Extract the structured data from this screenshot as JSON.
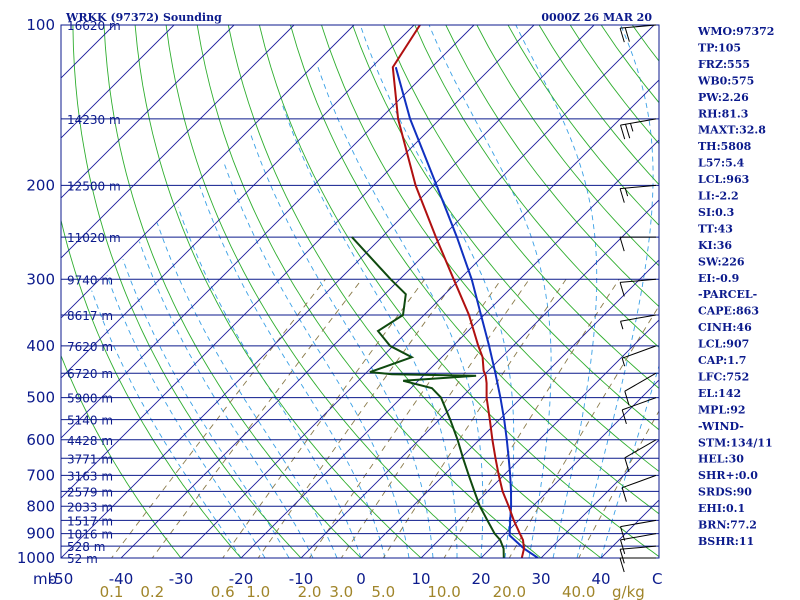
{
  "header": {
    "station": "WRKK (97372) Sounding",
    "time": "0000Z 26 MAR 20"
  },
  "colors": {
    "frame": "#0b1a8c",
    "isobar": "#0b1a8c",
    "isotherm": "#1a1a9c",
    "dry_adiabat": "#2fae2f",
    "moist_adiabat": "#3aa0e6",
    "mixing_ratio": "#8a7a4a",
    "temperature": "#b01010",
    "dewpoint": "#0f4a0f",
    "parcel": "#1030c0",
    "mixing_label": "#a0852a",
    "wind": "#000000"
  },
  "chart_data": {
    "type": "line",
    "title": "WRKK (97372) Sounding",
    "subtitle": "0000Z 26 MAR 20",
    "xlabel": "",
    "ylabel": "mb",
    "xlim": [
      -50,
      50
    ],
    "ylim": [
      1000,
      100
    ],
    "y_scale": "log",
    "skew": "45deg",
    "pressure_ticks": [
      100,
      200,
      300,
      400,
      500,
      600,
      700,
      800,
      900,
      1000
    ],
    "pressure_tick_labels": [
      "100",
      "200",
      "300",
      "400",
      "500",
      "600",
      "700",
      "800",
      "900",
      "1000"
    ],
    "y_unit_label": "mb",
    "temperature_ticks": [
      -50,
      -40,
      -30,
      -20,
      -10,
      0,
      10,
      20,
      30,
      40
    ],
    "temperature_tick_labels": [
      "-50",
      "-40",
      "-30",
      "-20",
      "-10",
      "0",
      "10",
      "20",
      "30",
      "40"
    ],
    "temperature_unit_label": "C",
    "mixing_ratio_ticks": [
      0.1,
      0.2,
      0.6,
      1.0,
      2.0,
      3.0,
      5.0,
      10.0,
      20.0,
      40.0
    ],
    "mixing_ratio_labels": [
      "0.1",
      "0.2",
      "0.6",
      "1.0",
      "2.0",
      "3.0",
      "5.0",
      "10.0",
      "20.0",
      "40.0"
    ],
    "mixing_ratio_unit": "g/kg",
    "heights": [
      {
        "p": 100,
        "label": "16620 m"
      },
      {
        "p": 150,
        "label": "14230 m"
      },
      {
        "p": 200,
        "label": "12500 m"
      },
      {
        "p": 250,
        "label": "11020 m"
      },
      {
        "p": 300,
        "label": "9740 m"
      },
      {
        "p": 350,
        "label": "8617 m"
      },
      {
        "p": 400,
        "label": "7620 m"
      },
      {
        "p": 450,
        "label": "6720 m"
      },
      {
        "p": 500,
        "label": "5900 m"
      },
      {
        "p": 550,
        "label": "5140 m"
      },
      {
        "p": 600,
        "label": "4428 m"
      },
      {
        "p": 650,
        "label": "3771 m"
      },
      {
        "p": 700,
        "label": "3163 m"
      },
      {
        "p": 750,
        "label": "2579 m"
      },
      {
        "p": 800,
        "label": "2033 m"
      },
      {
        "p": 850,
        "label": "1517 m"
      },
      {
        "p": 900,
        "label": "1016 m"
      },
      {
        "p": 950,
        "label": "528 m"
      },
      {
        "p": 1000,
        "label": "52 m"
      }
    ],
    "series": [
      {
        "name": "Temperature",
        "points": [
          {
            "p": 1000,
            "t": 26.8
          },
          {
            "p": 960,
            "t": 25.6
          },
          {
            "p": 925,
            "t": 24.0
          },
          {
            "p": 900,
            "t": 22.4
          },
          {
            "p": 850,
            "t": 19.2
          },
          {
            "p": 800,
            "t": 16.0
          },
          {
            "p": 750,
            "t": 12.5
          },
          {
            "p": 700,
            "t": 9.2
          },
          {
            "p": 650,
            "t": 5.8
          },
          {
            "p": 600,
            "t": 2.2
          },
          {
            "p": 550,
            "t": -1.6
          },
          {
            "p": 500,
            "t": -5.8
          },
          {
            "p": 470,
            "t": -8.2
          },
          {
            "p": 455,
            "t": -9.6
          },
          {
            "p": 445,
            "t": -10.8
          },
          {
            "p": 420,
            "t": -13.2
          },
          {
            "p": 400,
            "t": -15.8
          },
          {
            "p": 350,
            "t": -22.5
          },
          {
            "p": 300,
            "t": -31.0
          },
          {
            "p": 250,
            "t": -41.0
          },
          {
            "p": 200,
            "t": -53.0
          },
          {
            "p": 150,
            "t": -67.0
          },
          {
            "p": 120,
            "t": -76.5
          },
          {
            "p": 100,
            "t": -79.0
          }
        ]
      },
      {
        "name": "Dewpoint",
        "points": [
          {
            "p": 1000,
            "t": 23.8
          },
          {
            "p": 960,
            "t": 22.2
          },
          {
            "p": 925,
            "t": 20.2
          },
          {
            "p": 900,
            "t": 18.2
          },
          {
            "p": 850,
            "t": 14.8
          },
          {
            "p": 800,
            "t": 11.2
          },
          {
            "p": 750,
            "t": 7.8
          },
          {
            "p": 700,
            "t": 4.2
          },
          {
            "p": 650,
            "t": 0.4
          },
          {
            "p": 600,
            "t": -3.6
          },
          {
            "p": 550,
            "t": -8.2
          },
          {
            "p": 500,
            "t": -13.4
          },
          {
            "p": 480,
            "t": -16.5
          },
          {
            "p": 465,
            "t": -22.5
          },
          {
            "p": 455,
            "t": -11.2
          },
          {
            "p": 452,
            "t": -25.5
          },
          {
            "p": 448,
            "t": -29.5
          },
          {
            "p": 420,
            "t": -25.0
          },
          {
            "p": 400,
            "t": -30.5
          },
          {
            "p": 375,
            "t": -35.0
          },
          {
            "p": 350,
            "t": -33.5
          },
          {
            "p": 320,
            "t": -36.5
          },
          {
            "p": 300,
            "t": -41.5
          },
          {
            "p": 250,
            "t": -55.0
          }
        ]
      },
      {
        "name": "Parcel",
        "points": [
          {
            "p": 1000,
            "t": 29.5
          },
          {
            "p": 960,
            "t": 25.6
          },
          {
            "p": 907,
            "t": 21.0
          },
          {
            "p": 850,
            "t": 18.6
          },
          {
            "p": 800,
            "t": 16.4
          },
          {
            "p": 750,
            "t": 13.9
          },
          {
            "p": 700,
            "t": 11.1
          },
          {
            "p": 650,
            "t": 8.0
          },
          {
            "p": 600,
            "t": 4.6
          },
          {
            "p": 550,
            "t": 0.8
          },
          {
            "p": 500,
            "t": -3.5
          },
          {
            "p": 450,
            "t": -8.4
          },
          {
            "p": 400,
            "t": -14.0
          },
          {
            "p": 350,
            "t": -20.5
          },
          {
            "p": 300,
            "t": -28.0
          },
          {
            "p": 250,
            "t": -37.5
          },
          {
            "p": 200,
            "t": -49.5
          },
          {
            "p": 150,
            "t": -65.0
          },
          {
            "p": 120,
            "t": -76.0
          }
        ]
      }
    ],
    "wind_barbs": [
      {
        "p": 1000,
        "dir": 90,
        "spd": 10
      },
      {
        "p": 950,
        "dir": 95,
        "spd": 12
      },
      {
        "p": 900,
        "dir": 100,
        "spd": 14
      },
      {
        "p": 850,
        "dir": 100,
        "spd": 12
      },
      {
        "p": 700,
        "dir": 110,
        "spd": 10
      },
      {
        "p": 600,
        "dir": 120,
        "spd": 10
      },
      {
        "p": 500,
        "dir": 110,
        "spd": 12
      },
      {
        "p": 450,
        "dir": 120,
        "spd": 10
      },
      {
        "p": 400,
        "dir": 110,
        "spd": 8
      },
      {
        "p": 350,
        "dir": 100,
        "spd": 8
      },
      {
        "p": 300,
        "dir": 95,
        "spd": 10
      },
      {
        "p": 250,
        "dir": 90,
        "spd": 12
      },
      {
        "p": 200,
        "dir": 95,
        "spd": 15
      },
      {
        "p": 150,
        "dir": 100,
        "spd": 25
      },
      {
        "p": 100,
        "dir": 95,
        "spd": 20
      }
    ]
  },
  "indices": [
    "WMO:97372",
    "TP:105",
    "FRZ:555",
    "WB0:575",
    "PW:2.26",
    "RH:81.3",
    "MAXT:32.8",
    "TH:5808",
    "L57:5.4",
    "LCL:963",
    "LI:-2.2",
    "SI:0.3",
    "TT:43",
    "KI:36",
    "SW:226",
    "EI:-0.9",
    "-PARCEL-",
    "CAPE:863",
    "CINH:46",
    "LCL:907",
    "CAP:1.7",
    "LFC:752",
    "EL:142",
    "MPL:92",
    "-WIND-",
    "STM:134/11",
    "HEL:30",
    "SHR+:0.0",
    "SRDS:90",
    "EHI:0.1",
    "BRN:77.2",
    "BSHR:11"
  ]
}
